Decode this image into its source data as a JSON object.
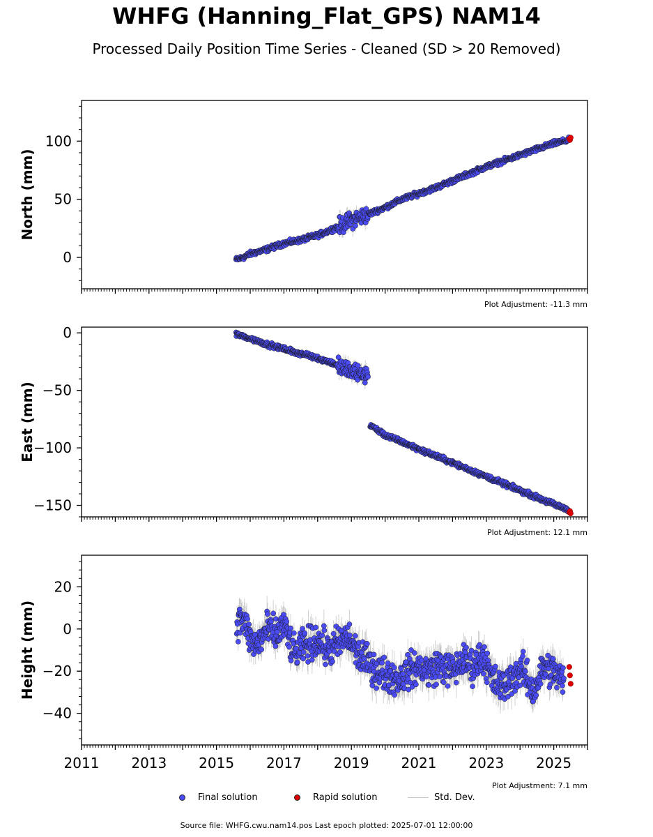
{
  "title": "WHFG (Hanning_Flat_GPS) NAM14",
  "subtitle": "Processed Daily Position Time Series - Cleaned (SD > 20 Removed)",
  "source_text": "Source file: WHFG.cwu.nam14.pos  Last epoch plotted: 2025-07-01 12:00:00",
  "legend": {
    "final": "Final solution",
    "rapid": "Rapid solution",
    "std": "Std. Dev."
  },
  "colors": {
    "final": "#4b4bf5",
    "rapid": "#e00000",
    "std": "#9a9a9a",
    "marker_edge": "#1a1a1a"
  },
  "chart_data": [
    {
      "type": "scatter",
      "ylabel": "North (mm)",
      "adjustment": "Plot Adjustment: -11.3 mm",
      "xlim": [
        2011,
        2026
      ],
      "ylim": [
        -27,
        135
      ],
      "yticks": [
        0,
        50,
        100
      ],
      "grid": false,
      "series": [
        {
          "name": "Final solution",
          "x": [
            2015.58,
            2015.8,
            2016.0,
            2016.5,
            2017.0,
            2017.5,
            2018.0,
            2018.5,
            2018.8,
            2019.0,
            2019.5,
            2020.0,
            2020.5,
            2021.0,
            2021.5,
            2022.0,
            2022.5,
            2023.0,
            2023.5,
            2024.0,
            2024.5,
            2025.0,
            2025.45
          ],
          "y": [
            -2,
            0,
            3,
            7,
            12,
            15,
            19,
            25,
            29,
            32,
            37,
            43,
            50,
            55,
            60,
            66,
            72,
            78,
            83,
            88,
            93,
            98,
            101
          ]
        },
        {
          "name": "Rapid solution",
          "x": [
            2025.46,
            2025.48,
            2025.5
          ],
          "y": [
            102,
            101,
            103
          ]
        }
      ]
    },
    {
      "type": "scatter",
      "ylabel": "East (mm)",
      "adjustment": "Plot Adjustment: 12.1 mm",
      "xlim": [
        2011,
        2026
      ],
      "ylim": [
        -160,
        5
      ],
      "yticks": [
        0,
        -50,
        -100,
        -150
      ],
      "grid": false,
      "series": [
        {
          "name": "Final solution",
          "x": [
            2015.58,
            2016.0,
            2016.5,
            2017.0,
            2017.5,
            2018.0,
            2018.5,
            2018.8,
            2019.0,
            2019.5,
            2019.55,
            2020.0,
            2020.5,
            2021.0,
            2021.5,
            2022.0,
            2022.5,
            2023.0,
            2023.5,
            2024.0,
            2024.5,
            2025.0,
            2025.45
          ],
          "y": [
            -1,
            -5,
            -10,
            -14,
            -18,
            -22,
            -27,
            -31,
            -34,
            -37,
            -80,
            -89,
            -95,
            -101,
            -107,
            -113,
            -119,
            -125,
            -131,
            -137,
            -143,
            -149,
            -154
          ]
        },
        {
          "name": "Rapid solution",
          "x": [
            2025.46,
            2025.48,
            2025.5
          ],
          "y": [
            -156,
            -155,
            -157
          ]
        }
      ]
    },
    {
      "type": "scatter",
      "ylabel": "Height (mm)",
      "adjustment": "Plot Adjustment: 7.1 mm",
      "xlim": [
        2011,
        2026
      ],
      "ylim": [
        -55,
        35
      ],
      "yticks": [
        20,
        0,
        -20,
        -40
      ],
      "xticks": [
        2011,
        2013,
        2015,
        2017,
        2019,
        2021,
        2023,
        2025
      ],
      "grid": false,
      "series": [
        {
          "name": "Final solution",
          "x": [
            2015.6,
            2015.8,
            2016.0,
            2016.2,
            2016.5,
            2016.8,
            2017.0,
            2017.3,
            2017.6,
            2018.0,
            2018.3,
            2018.6,
            2018.9,
            2019.2,
            2019.5,
            2019.8,
            2020.1,
            2020.4,
            2020.7,
            2021.0,
            2021.3,
            2021.6,
            2022.0,
            2022.3,
            2022.6,
            2022.9,
            2023.2,
            2023.5,
            2023.8,
            2024.1,
            2024.4,
            2024.7,
            2025.0,
            2025.3
          ],
          "y": [
            3,
            5,
            -5,
            -8,
            0,
            -3,
            2,
            -12,
            -8,
            -5,
            -10,
            -7,
            -4,
            -12,
            -16,
            -20,
            -22,
            -24,
            -20,
            -18,
            -20,
            -17,
            -20,
            -15,
            -18,
            -12,
            -25,
            -28,
            -22,
            -20,
            -30,
            -18,
            -20,
            -25
          ]
        },
        {
          "name": "Rapid solution",
          "x": [
            2025.46,
            2025.48,
            2025.5
          ],
          "y": [
            -18,
            -22,
            -26
          ]
        }
      ]
    }
  ]
}
